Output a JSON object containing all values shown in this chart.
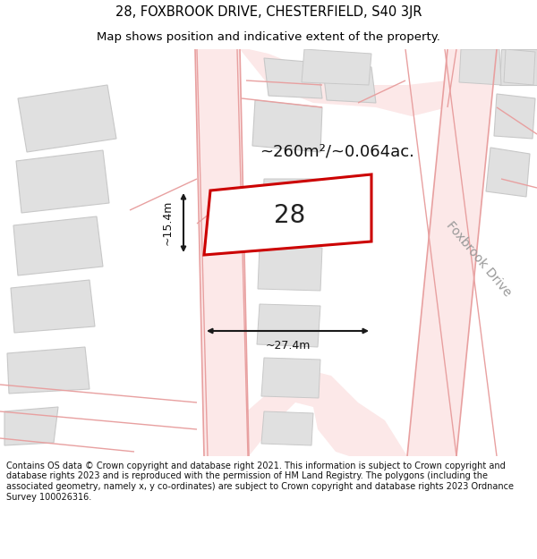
{
  "title_line1": "28, FOXBROOK DRIVE, CHESTERFIELD, S40 3JR",
  "title_line2": "Map shows position and indicative extent of the property.",
  "footer_text": "Contains OS data © Crown copyright and database right 2021. This information is subject to Crown copyright and database rights 2023 and is reproduced with the permission of HM Land Registry. The polygons (including the associated geometry, namely x, y co-ordinates) are subject to Crown copyright and database rights 2023 Ordnance Survey 100026316.",
  "area_label": "~260m²/~0.064ac.",
  "width_label": "~27.4m",
  "height_label": "~15.4m",
  "plot_number": "28",
  "street_label": "Foxbrook Drive",
  "bg_color": "#ffffff",
  "map_bg": "#ffffff",
  "road_color": "#e8a0a0",
  "road_fill": "#fce8e8",
  "block_fill": "#e0e0e0",
  "block_edge": "#c8c8c8",
  "plot_edge": "#cc0000",
  "plot_fill": "#ffffff",
  "dim_line_color": "#1a1a1a",
  "text_color": "#333333",
  "title_color": "#000000",
  "title_fontsize": 10.5,
  "subtitle_fontsize": 9.5,
  "footer_fontsize": 7.0,
  "area_fontsize": 13,
  "dim_fontsize": 9,
  "plot_num_fontsize": 20,
  "street_fontsize": 10
}
